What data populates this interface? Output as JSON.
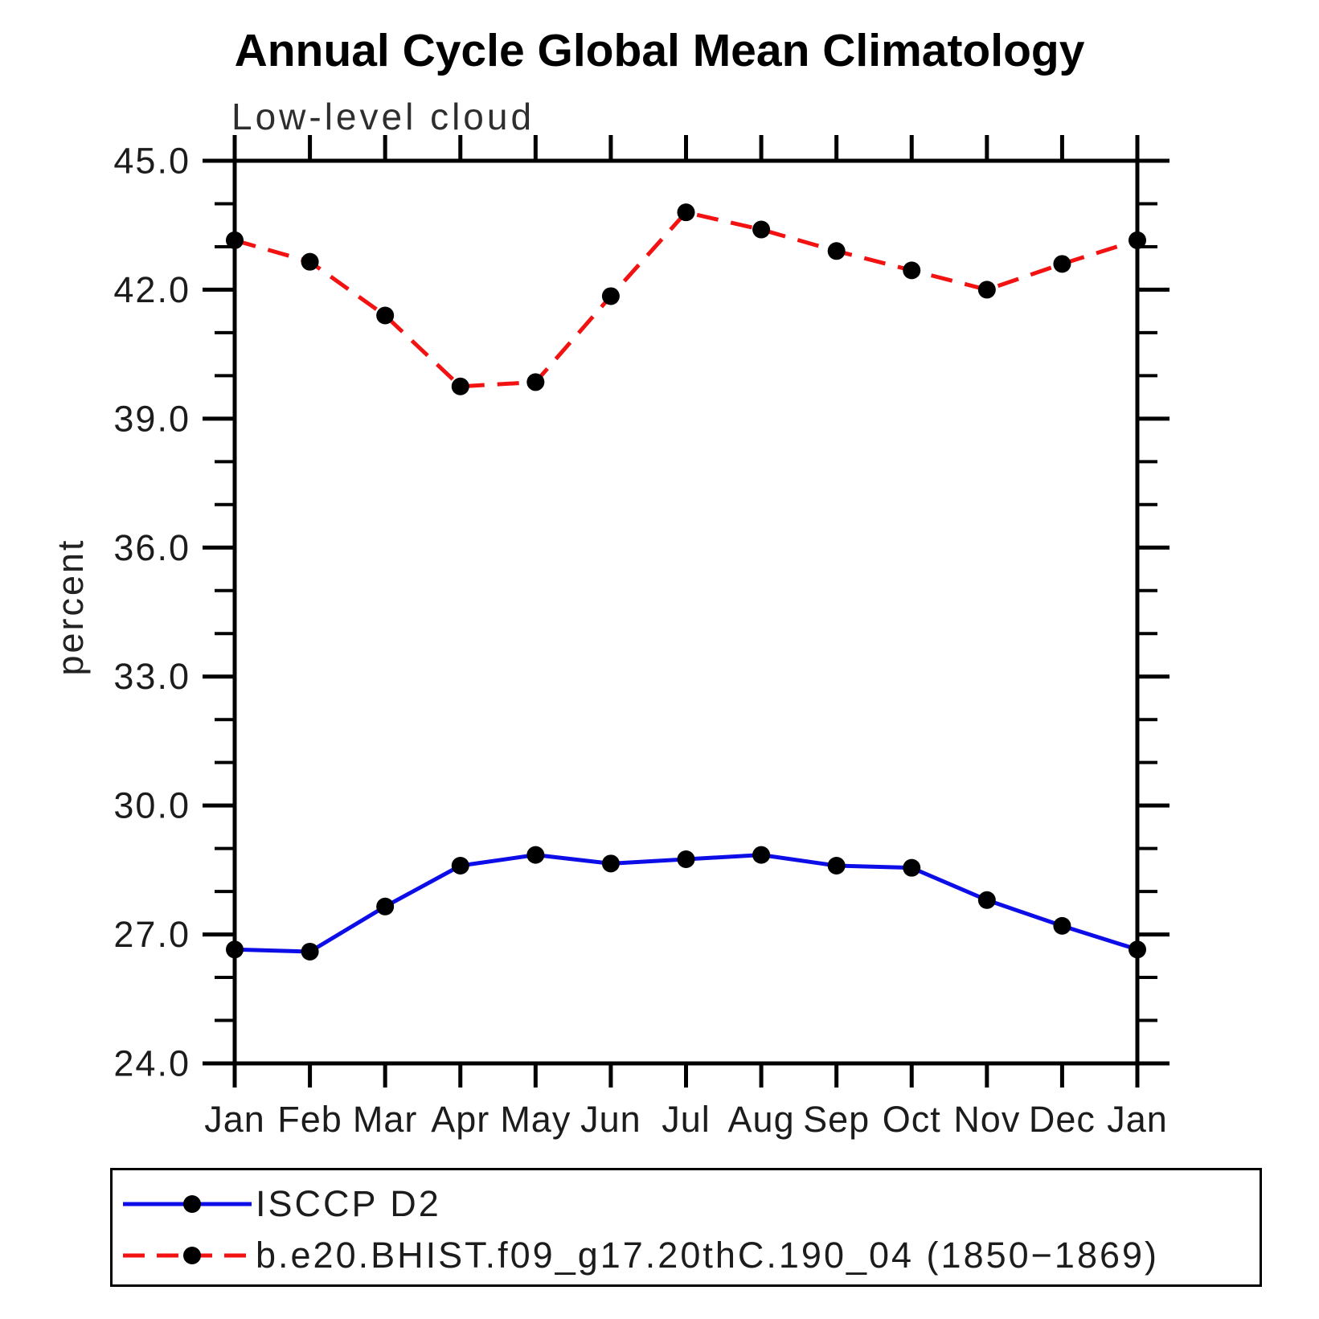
{
  "header": {
    "title": "Annual Cycle Global Mean Climatology",
    "subtitle": "Low-level cloud"
  },
  "chart_data": {
    "type": "line",
    "title": "Annual Cycle Global Mean Climatology",
    "subtitle": "Low-level cloud",
    "xlabel": "",
    "ylabel": "percent",
    "categories": [
      "Jan",
      "Feb",
      "Mar",
      "Apr",
      "May",
      "Jun",
      "Jul",
      "Aug",
      "Sep",
      "Oct",
      "Nov",
      "Dec",
      "Jan"
    ],
    "ylim": [
      24.0,
      45.0
    ],
    "ytick_major_step": 3.0,
    "ytick_minor_step": 1.0,
    "ytick_values": [
      24.0,
      27.0,
      30.0,
      33.0,
      36.0,
      39.0,
      42.0,
      45.0
    ],
    "ytick_labels": [
      "24.0",
      "27.0",
      "30.0",
      "33.0",
      "36.0",
      "39.0",
      "42.0",
      "45.0"
    ],
    "grid": false,
    "legend_position": "bottom",
    "frame_color": "#000000",
    "marker_color": "#000000",
    "series": [
      {
        "name": "ISCCP D2",
        "color": "#0d0de8",
        "style": "solid",
        "marker": "circle",
        "values": [
          26.65,
          26.6,
          27.65,
          28.6,
          28.85,
          28.65,
          28.75,
          28.85,
          28.6,
          28.55,
          27.8,
          27.2,
          26.65
        ]
      },
      {
        "name": "b.e20.BHIST.f09_g17.20thC.190_04 (1850−1869)",
        "color": "#f21212",
        "style": "dashed",
        "marker": "circle",
        "values": [
          43.15,
          42.65,
          41.4,
          39.75,
          39.85,
          41.85,
          43.8,
          43.4,
          42.9,
          42.45,
          42.0,
          42.6,
          43.15
        ]
      }
    ]
  }
}
